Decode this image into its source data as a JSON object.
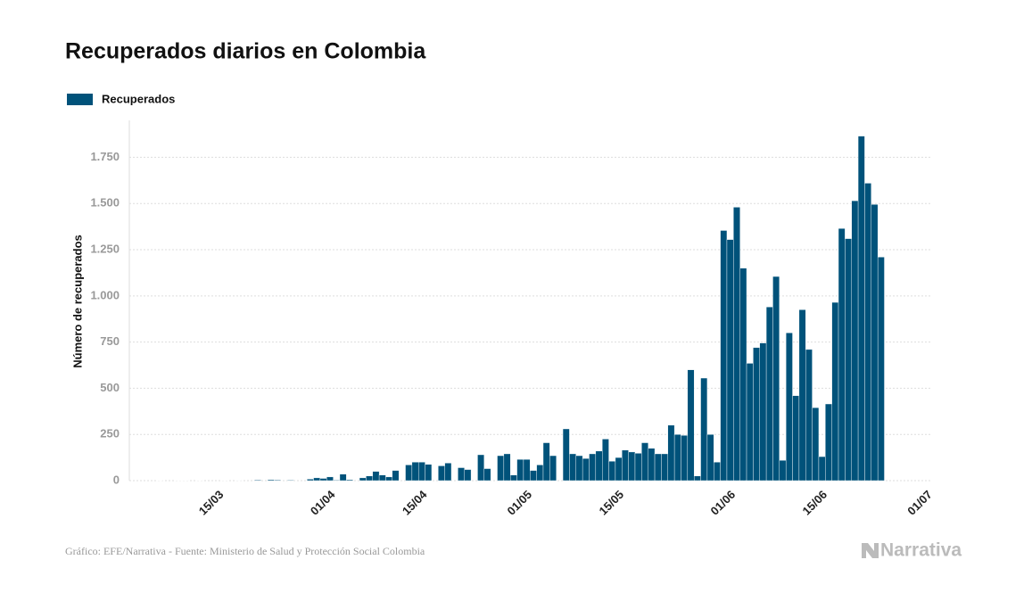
{
  "chart_data": {
    "type": "bar",
    "title": "Recuperados diarios en Colombia",
    "y_label": "Número de recuperados",
    "source": "Gráfico: EFE/Narrativa - Fuente: Ministerio de Salud y Protección Social Colombia",
    "logo": "Narrativa",
    "categories": [
      null,
      null,
      null,
      null,
      null,
      null,
      null,
      null,
      null,
      "15/03",
      null,
      null,
      null,
      null,
      null,
      null,
      null,
      null,
      null,
      null,
      null,
      null,
      null,
      null,
      null,
      null,
      "01/04",
      null,
      null,
      null,
      null,
      null,
      null,
      null,
      null,
      null,
      null,
      null,
      null,
      null,
      "15/04",
      null,
      null,
      null,
      null,
      null,
      null,
      null,
      null,
      null,
      null,
      null,
      null,
      null,
      null,
      null,
      "01/05",
      null,
      null,
      null,
      null,
      null,
      null,
      null,
      null,
      null,
      null,
      null,
      null,
      null,
      "15/05",
      null,
      null,
      null,
      null,
      null,
      null,
      null,
      null,
      null,
      null,
      null,
      null,
      null,
      null,
      null,
      null,
      "01/06",
      null,
      null,
      null,
      null,
      null,
      null,
      null,
      null,
      null,
      null,
      null,
      null,
      null,
      "15/06",
      null,
      null,
      null,
      null,
      null,
      null,
      null,
      null,
      null,
      null,
      null,
      null,
      null,
      null,
      null,
      "01/07"
    ],
    "series": [
      {
        "name": "Recuperados",
        "color": "#00527a",
        "values": [
          1,
          0,
          0,
          1,
          1,
          0,
          1,
          0,
          0,
          0,
          1,
          0,
          2,
          0,
          0,
          4,
          0,
          5,
          4,
          0,
          3,
          0,
          0,
          8,
          15,
          12,
          20,
          3,
          35,
          5,
          0,
          15,
          25,
          50,
          30,
          20,
          55,
          0,
          85,
          100,
          100,
          88,
          0,
          80,
          95,
          0,
          70,
          60,
          0,
          140,
          65,
          0,
          135,
          145,
          30,
          115,
          115,
          55,
          85,
          205,
          135,
          0,
          280,
          145,
          135,
          120,
          145,
          160,
          225,
          105,
          125,
          165,
          155,
          148,
          205,
          175,
          145,
          145,
          300,
          250,
          245,
          600,
          25,
          555,
          250,
          100,
          1354,
          1305,
          1480,
          1150,
          635,
          720,
          745,
          940,
          1105,
          110,
          800,
          460,
          925,
          710,
          395,
          130,
          415,
          965,
          1365,
          1310,
          1515,
          1865,
          1610,
          1495,
          1210,
          null,
          null,
          null,
          null,
          null,
          null,
          null
        ]
      }
    ],
    "ylim": [
      0,
      1950
    ],
    "yticks": [
      0,
      250,
      500,
      750,
      {
        "value": 1000,
        "label": "1.000"
      },
      {
        "value": 1250,
        "label": "1.250"
      },
      {
        "value": 1500,
        "label": "1.500"
      },
      {
        "value": 1750,
        "label": "1.750"
      }
    ],
    "grid": true
  }
}
